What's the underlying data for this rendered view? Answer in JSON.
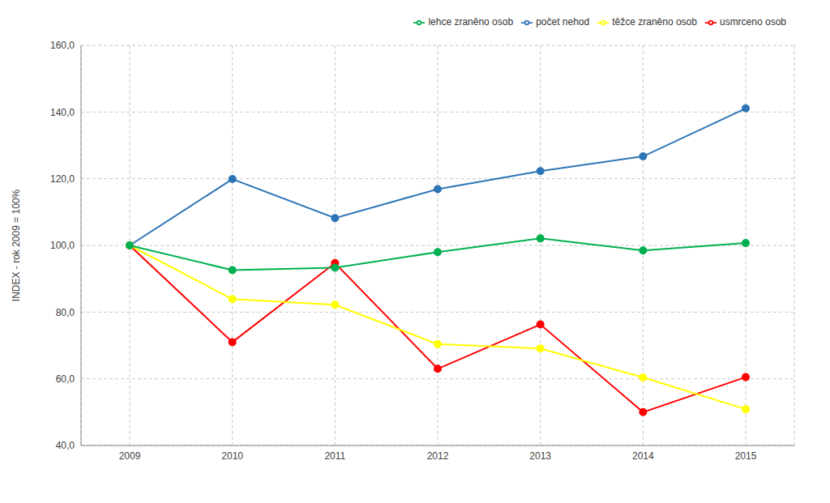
{
  "chart_data": {
    "type": "line",
    "ylabel": "INDEX - rok 2009 = 100%",
    "categories": [
      "2009",
      "2010",
      "2011",
      "2012",
      "2013",
      "2014",
      "2015"
    ],
    "series": [
      {
        "name": "počet nehod",
        "color": "#2e75b6",
        "values": [
          100,
          119.9,
          108.2,
          116.9,
          122.3,
          126.7,
          141.1
        ]
      },
      {
        "name": "usmrceno osob",
        "color": "#ff0000",
        "values": [
          100,
          71.0,
          94.7,
          63.0,
          76.3,
          50.0,
          60.5
        ]
      },
      {
        "name": "těžce zraněno osob",
        "color": "#ffff00",
        "values": [
          100,
          83.9,
          82.2,
          70.4,
          69.1,
          60.4,
          50.9
        ]
      },
      {
        "name": "lehce zraněno osob",
        "color": "#00b050",
        "values": [
          100,
          92.6,
          93.3,
          98.0,
          102.1,
          98.5,
          100.7
        ]
      }
    ],
    "ylim": [
      40,
      160
    ],
    "yticks": [
      {
        "value": 40,
        "label": "40,0"
      },
      {
        "value": 60,
        "label": "60,0"
      },
      {
        "value": 80,
        "label": "80,0"
      },
      {
        "value": 100,
        "label": "100,0"
      },
      {
        "value": 120,
        "label": "120,0"
      },
      {
        "value": 140,
        "label": "140,0"
      },
      {
        "value": 160,
        "label": "160,0"
      }
    ],
    "grid": true,
    "legend": "top-right",
    "marker": "circle"
  }
}
